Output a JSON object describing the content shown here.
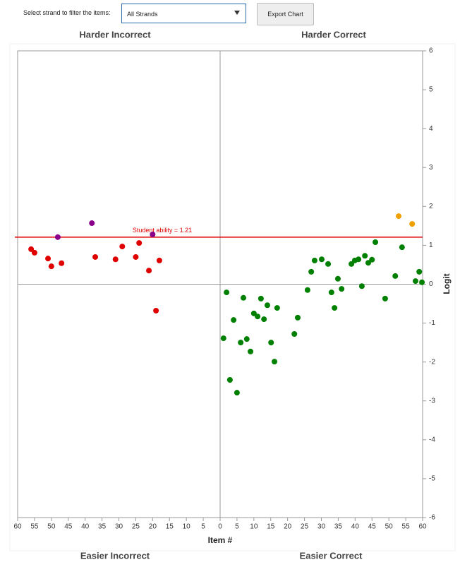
{
  "controls": {
    "filter_label": "Select strand to filter the items:",
    "filter_value": "All Strands",
    "export_button": "Export Chart"
  },
  "chart_data": {
    "type": "scatter",
    "quadrant_labels": {
      "top_left": "Harder Incorrect",
      "top_right": "Harder Correct",
      "bottom_left": "Easier Incorrect",
      "bottom_right": "Easier Correct"
    },
    "x_label": "Item #",
    "y_label": "Logit",
    "xlim": [
      -60,
      60
    ],
    "xticks": [
      {
        "value": -60,
        "label": "60"
      },
      {
        "value": -55,
        "label": "55"
      },
      {
        "value": -50,
        "label": "50"
      },
      {
        "value": -45,
        "label": "45"
      },
      {
        "value": -40,
        "label": "40"
      },
      {
        "value": -35,
        "label": "35"
      },
      {
        "value": -30,
        "label": "30"
      },
      {
        "value": -25,
        "label": "25"
      },
      {
        "value": -20,
        "label": "20"
      },
      {
        "value": -15,
        "label": "15"
      },
      {
        "value": -10,
        "label": "10"
      },
      {
        "value": -5,
        "label": "5"
      },
      0,
      5,
      10,
      15,
      20,
      25,
      30,
      35,
      40,
      45,
      50,
      55,
      60
    ],
    "ylim": [
      -6,
      6
    ],
    "yticks": [
      -6,
      -5,
      -4,
      -3,
      -2,
      -1,
      0,
      1,
      2,
      3,
      4,
      5,
      6
    ],
    "ability": 1.21,
    "ability_label": "Student ability = 1.21",
    "ability_color": "#e00000",
    "series": [
      {
        "color": "#e00000",
        "x": [
          -56,
          -55,
          -51,
          -50,
          -47,
          -37,
          -31,
          -29,
          -25,
          -24,
          -21.1,
          -18,
          -19
        ],
        "values": [
          0.9,
          0.81,
          0.66,
          0.46,
          0.54,
          0.7,
          0.64,
          0.97,
          0.7,
          1.06,
          0.35,
          0.61,
          -0.68
        ]
      },
      {
        "color": "#8b008b",
        "x": [
          -48.1,
          -38,
          -20
        ],
        "values": [
          1.21,
          1.57,
          1.28
        ]
      },
      {
        "color": "#f0a000",
        "x": [
          52.9,
          56.9
        ],
        "values": [
          1.75,
          1.55
        ]
      },
      {
        "color": "#008000",
        "x": [
          1,
          1.9,
          2.9,
          4,
          5,
          6.1,
          6.9,
          7.9,
          9,
          10,
          11.1,
          12.1,
          13,
          14,
          15.1,
          16.1,
          16.9,
          22,
          23,
          25.9,
          27,
          28,
          30.1,
          32,
          33,
          33.9,
          34.9,
          36,
          38.9,
          39.9,
          41,
          42,
          42.9,
          43.9,
          45,
          46,
          48.9,
          51.9,
          53.9,
          57.9,
          59,
          59.8
        ],
        "values": [
          -1.39,
          -0.21,
          -2.46,
          -0.92,
          -2.79,
          -1.5,
          -0.35,
          -1.41,
          -1.73,
          -0.75,
          -0.83,
          -0.37,
          -0.9,
          -0.54,
          -1.5,
          -1.99,
          -0.61,
          -1.28,
          -0.86,
          -0.15,
          0.32,
          0.61,
          0.64,
          0.52,
          -0.21,
          -0.61,
          0.14,
          -0.12,
          0.52,
          0.61,
          0.64,
          -0.05,
          0.73,
          0.55,
          0.63,
          1.08,
          -0.37,
          0.21,
          0.95,
          0.08,
          0.32,
          0.05
        ]
      }
    ]
  }
}
